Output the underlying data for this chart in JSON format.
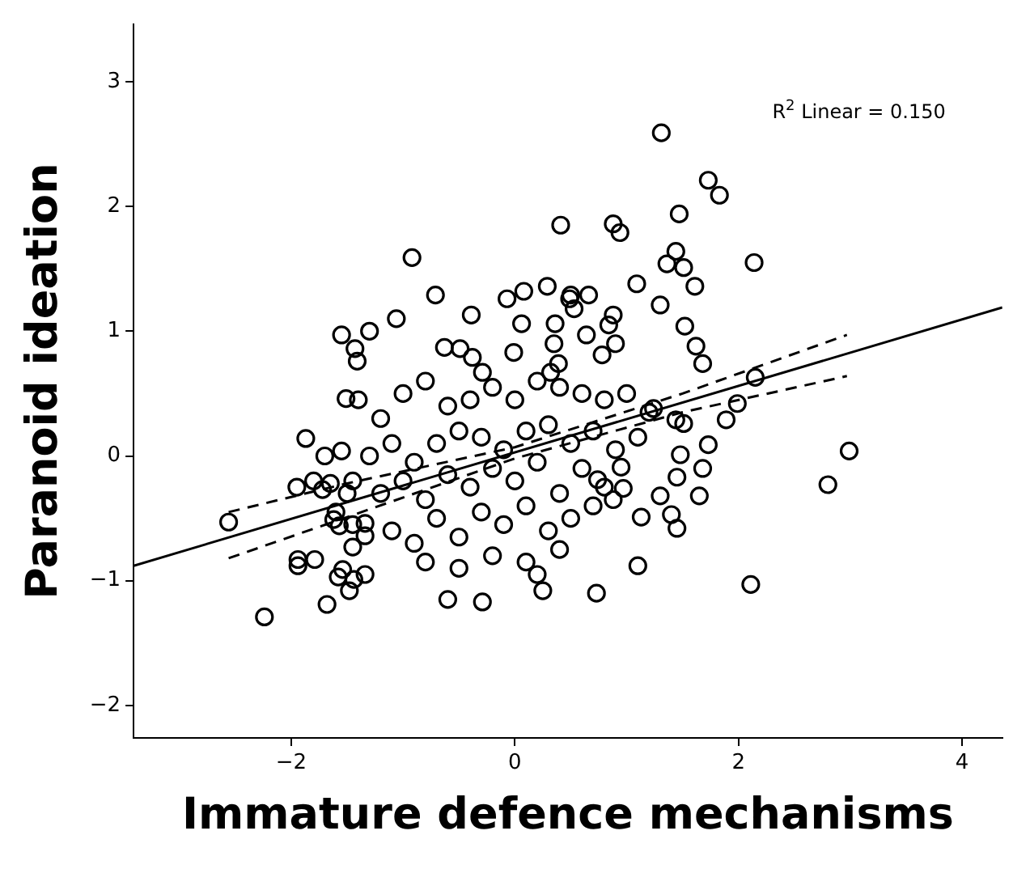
{
  "chart_data": {
    "type": "scatter",
    "xlabel": "Immature defence mechanisms",
    "ylabel": "Paranoid ideation",
    "annotations": [
      "R$^{2}$ Linear = 0.150"
    ],
    "xlim": [
      -3.41,
      4.36
    ],
    "ylim": [
      -2.26,
      3.46
    ],
    "xticks": [
      {
        "value": -2,
        "label": "−2"
      },
      0,
      2,
      4
    ],
    "yticks": [
      {
        "value": -2,
        "label": "−2"
      },
      {
        "value": -1,
        "label": "−1"
      },
      0,
      1,
      2,
      3
    ],
    "grid": false,
    "series": [
      {
        "type": "scatter",
        "marker": "circle",
        "color": "#000000",
        "x": [
          1.31,
          1.73,
          1.83,
          0.41,
          0.88,
          0.94,
          1.47,
          1.44,
          1.36,
          1.51,
          -0.92,
          1.09,
          1.61,
          0.29,
          0.08,
          0.5,
          -0.71,
          -1.06,
          -1.3,
          -1.55,
          -1.43,
          -1.41,
          2.14,
          2.15,
          1.52,
          1.62,
          1.68,
          1.3,
          -1.4,
          -1.87,
          -2.56,
          -2.24,
          -1.68,
          -1.94,
          -1.94,
          -1.79,
          -1.55,
          -1.51,
          -1.58,
          -1.48,
          -1.54,
          -1.44,
          -1.34,
          -1.45,
          -1.72,
          -1.65,
          -1.62,
          -1.57,
          -1.45,
          -1.34,
          -1.34,
          0.73,
          1.1,
          -0.6,
          -0.29,
          0.25,
          2.11,
          2.99,
          2.8,
          1.89,
          1.99,
          1.73,
          1.68,
          1.65,
          1.45,
          1.3,
          1.48,
          1.4,
          1.45,
          1.13,
          0.95,
          0.74,
          0.97,
          0.88,
          1.24,
          1.44,
          1.51,
          -0.07,
          -0.39,
          0.49,
          0.66,
          0.53,
          0.88,
          0.84,
          0.36,
          0.06,
          -0.01,
          -0.63,
          -0.49,
          -0.38,
          -0.29,
          0.35,
          0.64,
          0.78,
          0.9,
          0.39,
          0.32,
          -1.2,
          -1.0,
          -0.8,
          -0.6,
          -0.4,
          -0.2,
          0.0,
          0.2,
          0.4,
          0.6,
          0.8,
          1.0,
          1.2,
          -1.3,
          -1.1,
          -0.9,
          -0.7,
          -0.5,
          -0.3,
          -0.1,
          0.1,
          0.3,
          0.5,
          0.7,
          0.9,
          1.1,
          -1.2,
          -1.0,
          -0.8,
          -0.6,
          -0.4,
          -0.2,
          0.0,
          0.2,
          0.4,
          0.6,
          0.8,
          -1.1,
          -0.9,
          -0.7,
          -0.5,
          -0.3,
          -0.1,
          0.1,
          0.3,
          0.5,
          0.7,
          -0.8,
          -0.5,
          -0.2,
          0.1,
          0.4,
          0.2,
          -1.45,
          -1.5,
          -1.6,
          -1.7,
          -1.95,
          -1.8
        ],
        "values": [
          2.59,
          2.21,
          2.09,
          1.85,
          1.86,
          1.79,
          1.94,
          1.64,
          1.54,
          1.51,
          1.59,
          1.38,
          1.36,
          1.36,
          1.32,
          1.29,
          1.29,
          1.1,
          1.0,
          0.97,
          0.86,
          0.76,
          1.55,
          0.63,
          1.04,
          0.88,
          0.74,
          1.21,
          0.45,
          0.14,
          -0.53,
          -1.29,
          -1.19,
          -0.83,
          -0.88,
          -0.83,
          0.04,
          0.46,
          -0.97,
          -1.08,
          -0.91,
          -0.99,
          -0.95,
          -0.73,
          -0.27,
          -0.22,
          -0.51,
          -0.56,
          -0.55,
          -0.54,
          -0.64,
          -1.1,
          -0.88,
          -1.15,
          -1.17,
          -1.08,
          -1.03,
          0.04,
          -0.23,
          0.29,
          0.42,
          0.09,
          -0.1,
          -0.32,
          -0.17,
          -0.32,
          0.01,
          -0.47,
          -0.58,
          -0.49,
          -0.09,
          -0.19,
          -0.26,
          -0.35,
          0.38,
          0.29,
          0.26,
          1.26,
          1.13,
          1.26,
          1.29,
          1.18,
          1.13,
          1.05,
          1.06,
          1.06,
          0.83,
          0.87,
          0.86,
          0.79,
          0.67,
          0.9,
          0.97,
          0.81,
          0.9,
          0.74,
          0.67,
          0.3,
          0.5,
          0.6,
          0.4,
          0.45,
          0.55,
          0.45,
          0.6,
          0.55,
          0.5,
          0.45,
          0.5,
          0.35,
          0.0,
          0.1,
          -0.05,
          0.1,
          0.2,
          0.15,
          0.05,
          0.2,
          0.25,
          0.1,
          0.2,
          0.05,
          0.15,
          -0.3,
          -0.2,
          -0.35,
          -0.15,
          -0.25,
          -0.1,
          -0.2,
          -0.05,
          -0.3,
          -0.1,
          -0.25,
          -0.6,
          -0.7,
          -0.5,
          -0.65,
          -0.45,
          -0.55,
          -0.4,
          -0.6,
          -0.5,
          -0.4,
          -0.85,
          -0.9,
          -0.8,
          -0.85,
          -0.75,
          -0.95,
          -0.2,
          -0.3,
          -0.45,
          0.0,
          -0.25,
          -0.2
        ]
      },
      {
        "type": "line",
        "marker": "none",
        "color": "#000000",
        "line_style": "solid",
        "x": [
          -3.41,
          4.36
        ],
        "values": [
          -0.88,
          1.19
        ]
      },
      {
        "type": "line",
        "marker": "none",
        "color": "#000000",
        "line_style": "dashed",
        "x": [
          -2.56,
          -1.5,
          0,
          1.5,
          2.97
        ],
        "values": [
          -0.45,
          -0.22,
          0.07,
          0.5,
          0.97
        ]
      },
      {
        "type": "line",
        "marker": "none",
        "color": "#000000",
        "line_style": "dashed",
        "x": [
          -2.56,
          -1.5,
          0,
          1.5,
          2.97
        ],
        "values": [
          -0.82,
          -0.49,
          -0.02,
          0.35,
          0.64
        ]
      }
    ]
  }
}
